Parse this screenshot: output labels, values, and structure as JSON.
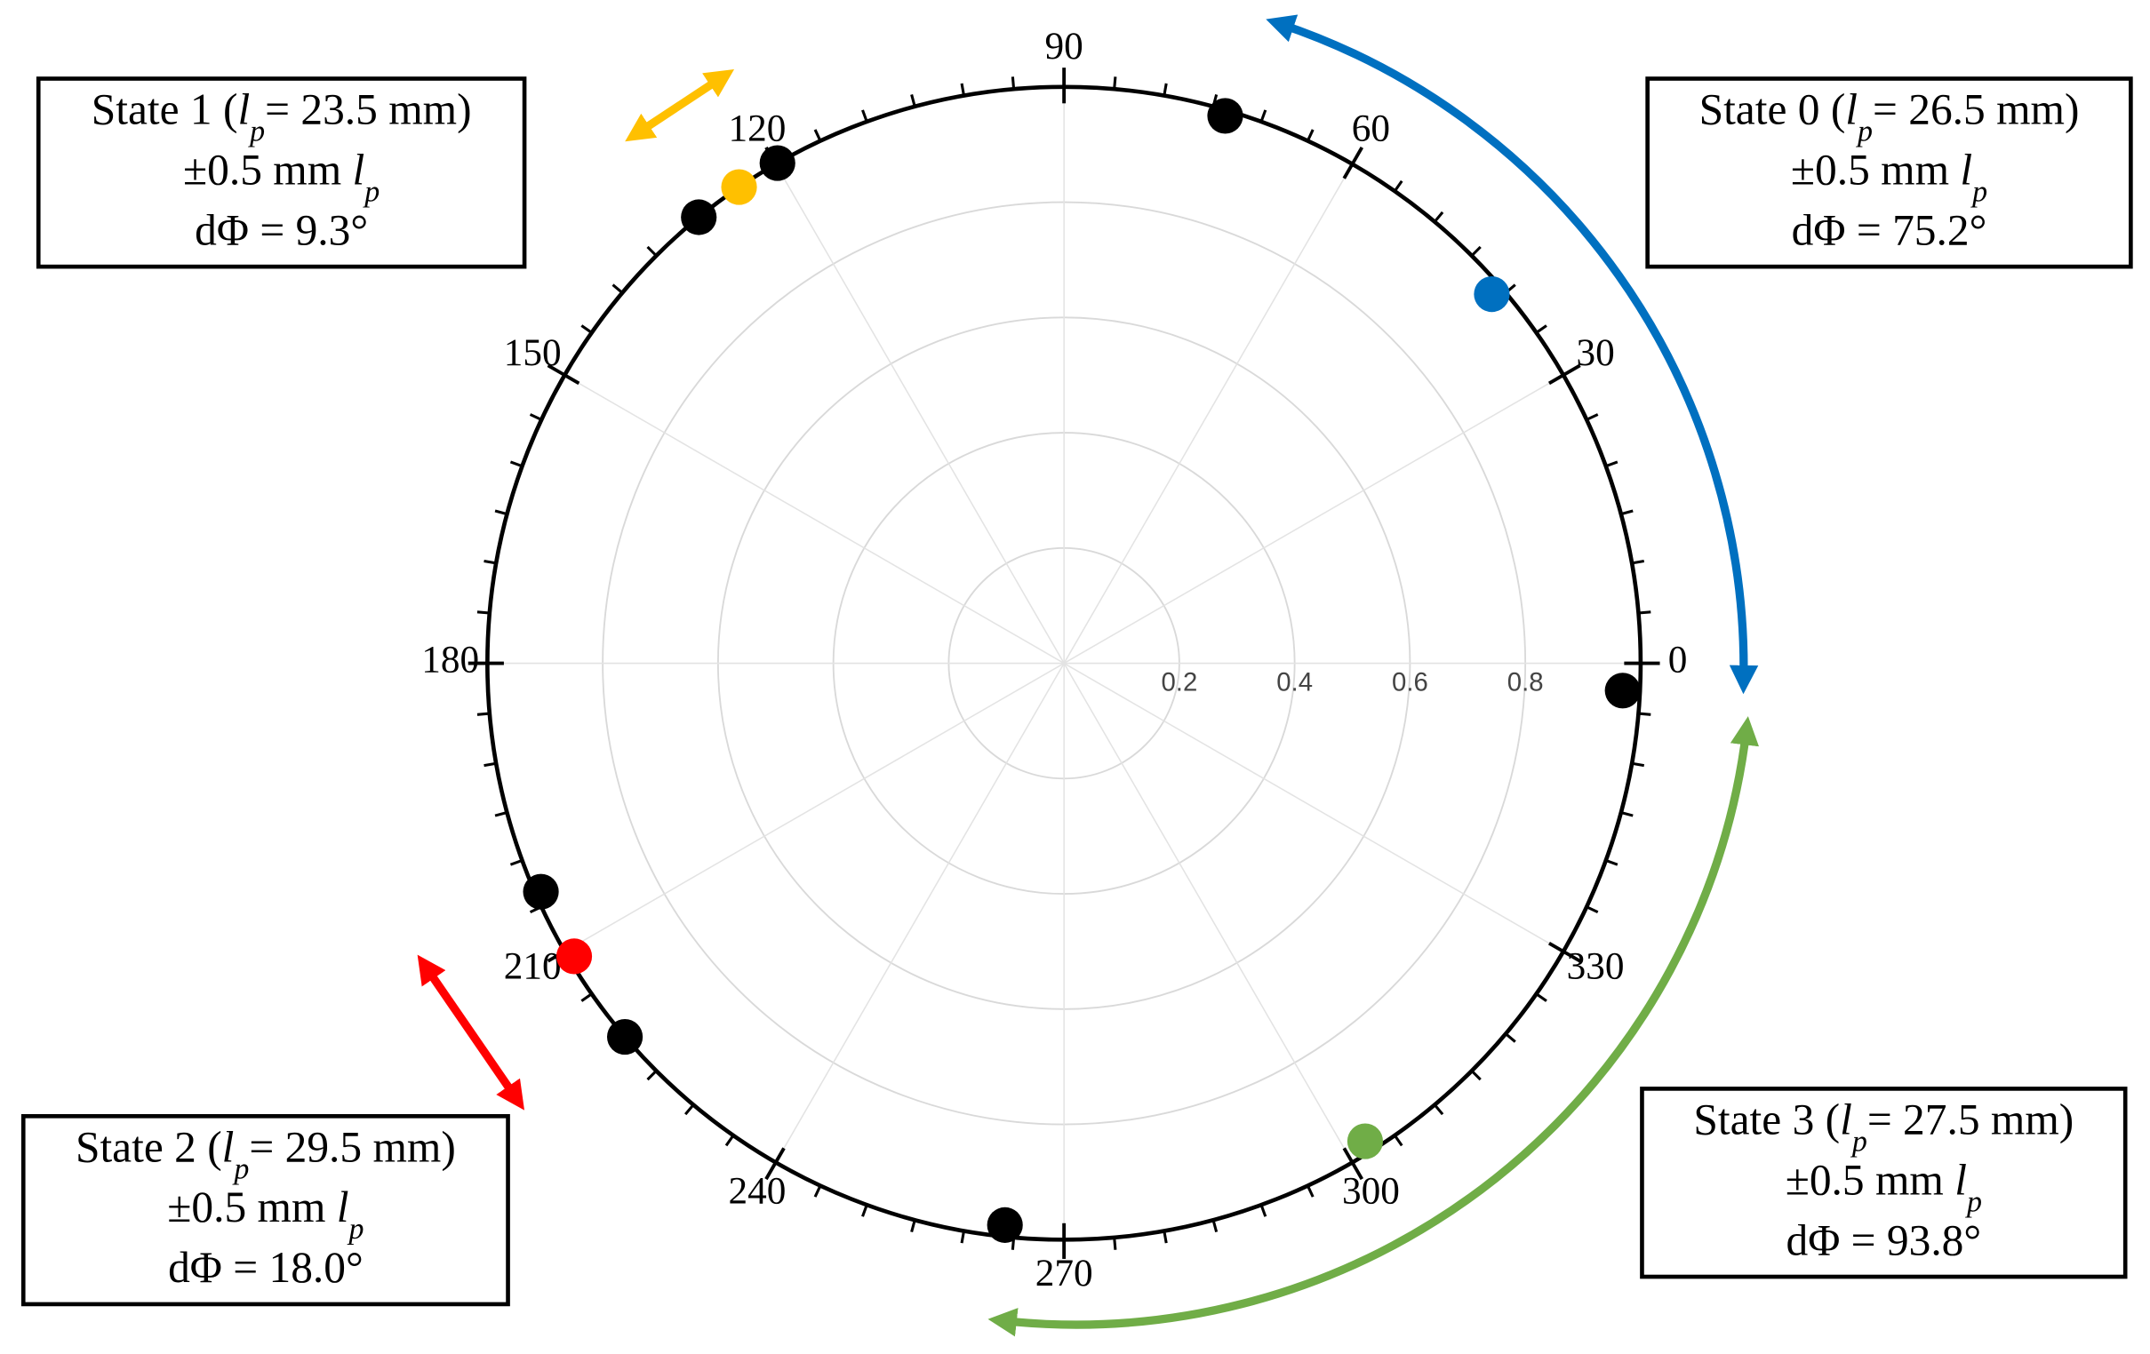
{
  "chart_data": {
    "type": "polar",
    "theta": [
      73.6,
      40.8,
      357.2,
      124.3,
      119.8,
      129.3,
      203.6,
      210.9,
      220.4,
      264.0,
      302.2
    ],
    "r": [
      0.99,
      0.98,
      0.97,
      1.0,
      1.0,
      1.0,
      0.99,
      0.99,
      1.0,
      0.98,
      0.98
    ],
    "colors": [
      "#000000",
      "#0070c0",
      "#000000",
      "#ffc000",
      "#000000",
      "#000000",
      "#000000",
      "#ff0000",
      "#000000",
      "#000000",
      "#70ad47"
    ],
    "rlim": [
      0,
      1
    ],
    "rticks": [
      0.2,
      0.4,
      0.6,
      0.8
    ],
    "thetaticks": [
      0,
      30,
      60,
      90,
      120,
      150,
      180,
      210,
      240,
      270,
      300,
      330
    ],
    "grid": true,
    "annotations": [
      {
        "lines": [
          [
            {
              "text": "State 0 ("
            },
            {
              "text": "l",
              "style": "italic"
            },
            {
              "text": "p",
              "style": "sub"
            },
            {
              "text": "= 26.5 mm)"
            }
          ],
          [
            {
              "text": "±0.5 mm "
            },
            {
              "text": "l",
              "style": "italic"
            },
            {
              "text": "p",
              "style": "sub"
            }
          ],
          [
            {
              "text": "dΦ = 75.2°"
            }
          ]
        ]
      },
      {
        "lines": [
          [
            {
              "text": "State 1 ("
            },
            {
              "text": "l",
              "style": "italic"
            },
            {
              "text": "p",
              "style": "sub"
            },
            {
              "text": "= 23.5 mm)"
            }
          ],
          [
            {
              "text": "±0.5 mm "
            },
            {
              "text": "l",
              "style": "italic"
            },
            {
              "text": "p",
              "style": "sub"
            }
          ],
          [
            {
              "text": "dΦ = 9.3°"
            }
          ]
        ]
      },
      {
        "lines": [
          [
            {
              "text": "State 2 ("
            },
            {
              "text": "l",
              "style": "italic"
            },
            {
              "text": "p",
              "style": "sub"
            },
            {
              "text": "= 29.5 mm)"
            }
          ],
          [
            {
              "text": "±0.5 mm "
            },
            {
              "text": "l",
              "style": "italic"
            },
            {
              "text": "p",
              "style": "sub"
            }
          ],
          [
            {
              "text": "dΦ = 18.0°"
            }
          ]
        ]
      },
      {
        "lines": [
          [
            {
              "text": "State 3 ("
            },
            {
              "text": "l",
              "style": "italic"
            },
            {
              "text": "p",
              "style": "sub"
            },
            {
              "text": "= 27.5 mm)"
            }
          ],
          [
            {
              "text": "±0.5 mm "
            },
            {
              "text": "l",
              "style": "italic"
            },
            {
              "text": "p",
              "style": "sub"
            }
          ],
          [
            {
              "text": "dΦ = 93.8°"
            }
          ]
        ]
      }
    ]
  }
}
